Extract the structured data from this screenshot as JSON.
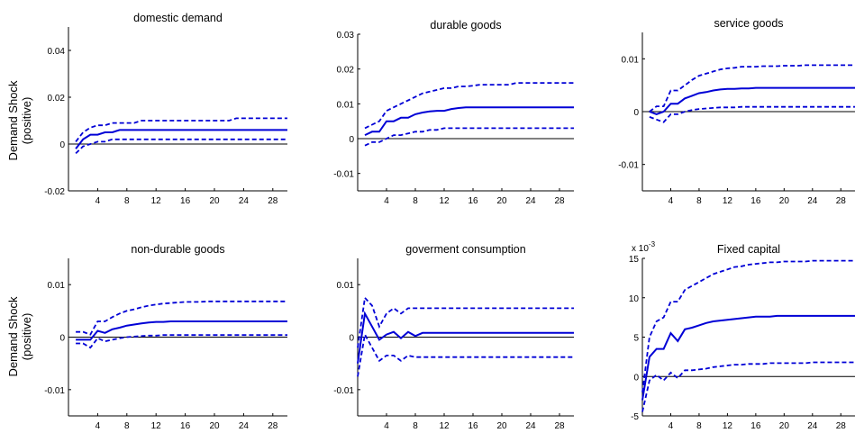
{
  "row_labels": [
    {
      "line1": "Demand Shock",
      "line2": "(positive)"
    },
    {
      "line1": "Demand Shock",
      "line2": "(positive)"
    }
  ],
  "colors": {
    "series": "#0000d6",
    "zero_line": "#000000",
    "axis": "#000000"
  },
  "chart_data": [
    {
      "type": "line",
      "title": "domestic demand",
      "xlim": [
        0,
        30
      ],
      "ylim": [
        -0.02,
        0.05
      ],
      "xticks": [
        4,
        8,
        12,
        16,
        20,
        24,
        28
      ],
      "xticklabels": [
        "4",
        "8",
        "12",
        "16",
        "20",
        "24",
        "28"
      ],
      "yticks": [
        -0.02,
        0,
        0.02,
        0.04
      ],
      "yticklabels": [
        "-0.02",
        "0",
        "0.02",
        "0.04"
      ],
      "x": [
        1,
        2,
        3,
        4,
        5,
        6,
        7,
        8,
        9,
        10,
        11,
        12,
        13,
        14,
        15,
        16,
        17,
        18,
        19,
        20,
        21,
        22,
        23,
        24,
        25,
        26,
        27,
        28,
        29,
        30
      ],
      "series": [
        {
          "style": "dashed",
          "values": [
            0.001,
            0.005,
            0.007,
            0.008,
            0.008,
            0.009,
            0.009,
            0.009,
            0.009,
            0.01,
            0.01,
            0.01,
            0.01,
            0.01,
            0.01,
            0.01,
            0.01,
            0.01,
            0.01,
            0.01,
            0.01,
            0.01,
            0.011,
            0.011,
            0.011,
            0.011,
            0.011,
            0.011,
            0.011,
            0.011
          ]
        },
        {
          "style": "solid",
          "values": [
            -0.002,
            0.002,
            0.004,
            0.004,
            0.005,
            0.005,
            0.006,
            0.006,
            0.006,
            0.006,
            0.006,
            0.006,
            0.006,
            0.006,
            0.006,
            0.006,
            0.006,
            0.006,
            0.006,
            0.006,
            0.006,
            0.006,
            0.006,
            0.006,
            0.006,
            0.006,
            0.006,
            0.006,
            0.006,
            0.006
          ]
        },
        {
          "style": "dashed",
          "values": [
            -0.004,
            -0.001,
            0.0,
            0.001,
            0.001,
            0.002,
            0.002,
            0.002,
            0.002,
            0.002,
            0.002,
            0.002,
            0.002,
            0.002,
            0.002,
            0.002,
            0.002,
            0.002,
            0.002,
            0.002,
            0.002,
            0.002,
            0.002,
            0.002,
            0.002,
            0.002,
            0.002,
            0.002,
            0.002,
            0.002
          ]
        }
      ]
    },
    {
      "type": "line",
      "title": "durable goods",
      "xlim": [
        0,
        30
      ],
      "ylim": [
        -0.015,
        0.03
      ],
      "xticks": [
        4,
        8,
        12,
        16,
        20,
        24,
        28
      ],
      "xticklabels": [
        "4",
        "8",
        "12",
        "16",
        "20",
        "24",
        "28"
      ],
      "yticks": [
        -0.01,
        0,
        0.01,
        0.02,
        0.03
      ],
      "yticklabels": [
        "-0.01",
        "0",
        "0.01",
        "0.02",
        "0.03"
      ],
      "x": [
        1,
        2,
        3,
        4,
        5,
        6,
        7,
        8,
        9,
        10,
        11,
        12,
        13,
        14,
        15,
        16,
        17,
        18,
        19,
        20,
        21,
        22,
        23,
        24,
        25,
        26,
        27,
        28,
        29,
        30
      ],
      "series": [
        {
          "style": "dashed",
          "values": [
            0.003,
            0.004,
            0.005,
            0.008,
            0.009,
            0.01,
            0.011,
            0.012,
            0.013,
            0.0135,
            0.014,
            0.0145,
            0.0145,
            0.015,
            0.015,
            0.0152,
            0.0155,
            0.0155,
            0.0155,
            0.0155,
            0.0155,
            0.016,
            0.016,
            0.016,
            0.016,
            0.016,
            0.016,
            0.016,
            0.016,
            0.016
          ]
        },
        {
          "style": "solid",
          "values": [
            0.001,
            0.002,
            0.002,
            0.005,
            0.005,
            0.006,
            0.006,
            0.007,
            0.0075,
            0.0078,
            0.008,
            0.008,
            0.0085,
            0.0088,
            0.009,
            0.009,
            0.009,
            0.009,
            0.009,
            0.009,
            0.009,
            0.009,
            0.009,
            0.009,
            0.009,
            0.009,
            0.009,
            0.009,
            0.009,
            0.009
          ]
        },
        {
          "style": "dashed",
          "values": [
            -0.002,
            -0.001,
            -0.001,
            0.0,
            0.001,
            0.001,
            0.0015,
            0.002,
            0.002,
            0.0025,
            0.0025,
            0.003,
            0.003,
            0.003,
            0.003,
            0.003,
            0.003,
            0.003,
            0.003,
            0.003,
            0.003,
            0.003,
            0.003,
            0.003,
            0.003,
            0.003,
            0.003,
            0.003,
            0.003,
            0.003
          ]
        }
      ]
    },
    {
      "type": "line",
      "title": "service goods",
      "xlim": [
        0,
        30
      ],
      "ylim": [
        -0.015,
        0.015
      ],
      "xticks": [
        4,
        8,
        12,
        16,
        20,
        24,
        28
      ],
      "xticklabels": [
        "4",
        "8",
        "12",
        "16",
        "20",
        "24",
        "28"
      ],
      "yticks": [
        -0.01,
        0,
        0.01
      ],
      "yticklabels": [
        "-0.01",
        "0",
        "0.01"
      ],
      "x": [
        1,
        2,
        3,
        4,
        5,
        6,
        7,
        8,
        9,
        10,
        11,
        12,
        13,
        14,
        15,
        16,
        17,
        18,
        19,
        20,
        21,
        22,
        23,
        24,
        25,
        26,
        27,
        28,
        29,
        30
      ],
      "series": [
        {
          "style": "dashed",
          "values": [
            0.0,
            0.001,
            0.001,
            0.004,
            0.004,
            0.005,
            0.006,
            0.0068,
            0.0072,
            0.0076,
            0.008,
            0.0082,
            0.0083,
            0.0085,
            0.0085,
            0.0085,
            0.0086,
            0.0086,
            0.0086,
            0.0087,
            0.0087,
            0.0087,
            0.0088,
            0.0088,
            0.0088,
            0.0088,
            0.0088,
            0.0088,
            0.0088,
            0.0088
          ]
        },
        {
          "style": "solid",
          "values": [
            0.0,
            -0.0005,
            0.0,
            0.0015,
            0.0015,
            0.0025,
            0.003,
            0.0035,
            0.0037,
            0.004,
            0.0042,
            0.0043,
            0.0043,
            0.0044,
            0.0044,
            0.0045,
            0.0045,
            0.0045,
            0.0045,
            0.0045,
            0.0045,
            0.0045,
            0.0045,
            0.0045,
            0.0045,
            0.0045,
            0.0045,
            0.0045,
            0.0045,
            0.0045
          ]
        },
        {
          "style": "dashed",
          "values": [
            -0.001,
            -0.0015,
            -0.002,
            -0.0005,
            -0.0005,
            0.0,
            0.0003,
            0.0005,
            0.0006,
            0.0007,
            0.0008,
            0.0008,
            0.0008,
            0.0009,
            0.0009,
            0.0009,
            0.0009,
            0.0009,
            0.0009,
            0.0009,
            0.0009,
            0.0009,
            0.0009,
            0.0009,
            0.0009,
            0.0009,
            0.0009,
            0.0009,
            0.0009,
            0.0009
          ]
        }
      ]
    },
    {
      "type": "line",
      "title": "non-durable goods",
      "xlim": [
        0,
        30
      ],
      "ylim": [
        -0.015,
        0.015
      ],
      "xticks": [
        4,
        8,
        12,
        16,
        20,
        24,
        28
      ],
      "xticklabels": [
        "4",
        "8",
        "12",
        "16",
        "20",
        "24",
        "28"
      ],
      "yticks": [
        -0.01,
        0,
        0.01
      ],
      "yticklabels": [
        "-0.01",
        "0",
        "0.01"
      ],
      "x": [
        1,
        2,
        3,
        4,
        5,
        6,
        7,
        8,
        9,
        10,
        11,
        12,
        13,
        14,
        15,
        16,
        17,
        18,
        19,
        20,
        21,
        22,
        23,
        24,
        25,
        26,
        27,
        28,
        29,
        30
      ],
      "series": [
        {
          "style": "dashed",
          "values": [
            0.001,
            0.001,
            0.0005,
            0.003,
            0.003,
            0.0038,
            0.0045,
            0.005,
            0.0053,
            0.0057,
            0.006,
            0.0062,
            0.0064,
            0.0065,
            0.0066,
            0.0067,
            0.0067,
            0.0067,
            0.0068,
            0.0068,
            0.0068,
            0.0068,
            0.0068,
            0.0068,
            0.0068,
            0.0068,
            0.0068,
            0.0068,
            0.0068,
            0.0068
          ]
        },
        {
          "style": "solid",
          "values": [
            -0.0005,
            -0.0005,
            -0.0005,
            0.0012,
            0.0008,
            0.0015,
            0.0018,
            0.0022,
            0.0024,
            0.0026,
            0.0028,
            0.0029,
            0.0029,
            0.003,
            0.003,
            0.003,
            0.003,
            0.003,
            0.003,
            0.003,
            0.003,
            0.003,
            0.003,
            0.003,
            0.003,
            0.003,
            0.003,
            0.003,
            0.003,
            0.003
          ]
        },
        {
          "style": "dashed",
          "values": [
            -0.0012,
            -0.0012,
            -0.002,
            -0.0002,
            -0.0008,
            -0.0005,
            -0.0002,
            0.0,
            0.0001,
            0.0002,
            0.0003,
            0.0003,
            0.0004,
            0.0004,
            0.0004,
            0.0004,
            0.0004,
            0.0004,
            0.0004,
            0.0004,
            0.0004,
            0.0004,
            0.0004,
            0.0004,
            0.0004,
            0.0004,
            0.0004,
            0.0004,
            0.0004,
            0.0004
          ]
        }
      ]
    },
    {
      "type": "line",
      "title": "goverment consumption",
      "xlim": [
        0,
        30
      ],
      "ylim": [
        -0.015,
        0.015
      ],
      "xticks": [
        4,
        8,
        12,
        16,
        20,
        24,
        28
      ],
      "xticklabels": [
        "4",
        "8",
        "12",
        "16",
        "20",
        "24",
        "28"
      ],
      "yticks": [
        -0.01,
        0,
        0.01
      ],
      "yticklabels": [
        "-0.01",
        "0",
        "0.01"
      ],
      "x": [
        0,
        1,
        2,
        3,
        4,
        5,
        6,
        7,
        8,
        9,
        10,
        11,
        12,
        13,
        14,
        15,
        16,
        17,
        18,
        19,
        20,
        21,
        22,
        23,
        24,
        25,
        26,
        27,
        28,
        29,
        30
      ],
      "series": [
        {
          "style": "dashed",
          "values": [
            -0.002,
            0.0075,
            0.006,
            0.002,
            0.0045,
            0.0055,
            0.0045,
            0.0055,
            0.0055,
            0.0055,
            0.0055,
            0.0055,
            0.0055,
            0.0055,
            0.0055,
            0.0055,
            0.0055,
            0.0055,
            0.0055,
            0.0055,
            0.0055,
            0.0055,
            0.0055,
            0.0055,
            0.0055,
            0.0055,
            0.0055,
            0.0055,
            0.0055,
            0.0055,
            0.0055
          ]
        },
        {
          "style": "solid",
          "values": [
            -0.005,
            0.0045,
            0.002,
            -0.0005,
            0.0005,
            0.001,
            -0.0002,
            0.001,
            0.0002,
            0.0008,
            0.0008,
            0.0008,
            0.0008,
            0.0008,
            0.0008,
            0.0008,
            0.0008,
            0.0008,
            0.0008,
            0.0008,
            0.0008,
            0.0008,
            0.0008,
            0.0008,
            0.0008,
            0.0008,
            0.0008,
            0.0008,
            0.0008,
            0.0008,
            0.0008
          ]
        },
        {
          "style": "dashed",
          "values": [
            -0.0075,
            0.0005,
            -0.002,
            -0.0045,
            -0.0035,
            -0.0035,
            -0.0045,
            -0.0035,
            -0.0038,
            -0.0038,
            -0.0038,
            -0.0038,
            -0.0038,
            -0.0038,
            -0.0038,
            -0.0038,
            -0.0038,
            -0.0038,
            -0.0038,
            -0.0038,
            -0.0038,
            -0.0038,
            -0.0038,
            -0.0038,
            -0.0038,
            -0.0038,
            -0.0038,
            -0.0038,
            -0.0038,
            -0.0038,
            -0.0038
          ]
        }
      ]
    },
    {
      "type": "line",
      "title": "Fixed capital",
      "xlim": [
        0,
        30
      ],
      "ylim": [
        -5,
        15
      ],
      "exponent_label": "x 10-3",
      "xticks": [
        4,
        8,
        12,
        16,
        20,
        24,
        28
      ],
      "xticklabels": [
        "4",
        "8",
        "12",
        "16",
        "20",
        "24",
        "28"
      ],
      "yticks": [
        -5,
        0,
        5,
        10,
        15
      ],
      "yticklabels": [
        "-5",
        "0",
        "5",
        "10",
        "15"
      ],
      "x": [
        0,
        1,
        2,
        3,
        4,
        5,
        6,
        7,
        8,
        9,
        10,
        11,
        12,
        13,
        14,
        15,
        16,
        17,
        18,
        19,
        20,
        21,
        22,
        23,
        24,
        25,
        26,
        27,
        28,
        29,
        30
      ],
      "series": [
        {
          "style": "dashed",
          "values": [
            -2,
            5,
            7,
            7.5,
            9.5,
            9.5,
            11,
            11.5,
            12,
            12.5,
            13,
            13.3,
            13.6,
            13.9,
            14,
            14.2,
            14.3,
            14.4,
            14.5,
            14.5,
            14.6,
            14.6,
            14.6,
            14.6,
            14.7,
            14.7,
            14.7,
            14.7,
            14.7,
            14.7,
            14.7
          ]
        },
        {
          "style": "solid",
          "values": [
            -3,
            2.5,
            3.5,
            3.5,
            5.5,
            4.5,
            6,
            6.2,
            6.5,
            6.8,
            7,
            7.1,
            7.2,
            7.3,
            7.4,
            7.5,
            7.6,
            7.6,
            7.6,
            7.7,
            7.7,
            7.7,
            7.7,
            7.7,
            7.7,
            7.7,
            7.7,
            7.7,
            7.7,
            7.7,
            7.7
          ]
        },
        {
          "style": "dashed",
          "values": [
            -4.5,
            -0.5,
            0.2,
            -0.5,
            0.5,
            -0.2,
            0.8,
            0.8,
            0.9,
            1.0,
            1.2,
            1.3,
            1.4,
            1.5,
            1.5,
            1.6,
            1.6,
            1.6,
            1.7,
            1.7,
            1.7,
            1.7,
            1.7,
            1.7,
            1.8,
            1.8,
            1.8,
            1.8,
            1.8,
            1.8,
            1.8
          ]
        }
      ]
    }
  ]
}
